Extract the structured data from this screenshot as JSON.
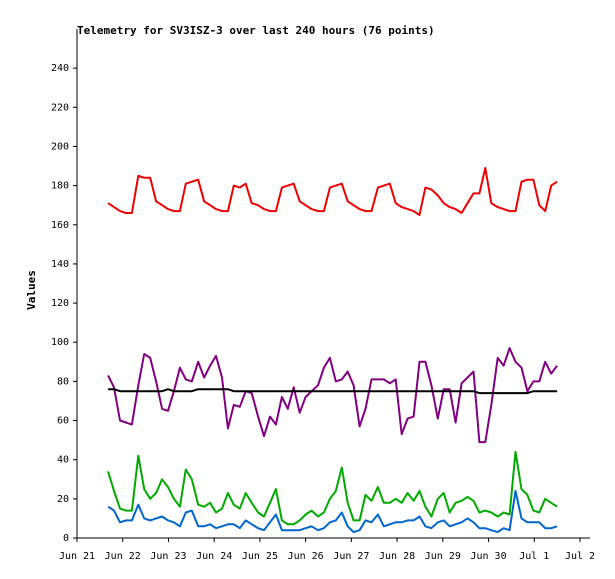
{
  "chart_data": {
    "type": "line",
    "title": "Telemetry for SV3ISZ-3 over last 240 hours (76 points)",
    "y_label": "Values",
    "xlim": [
      0,
      11
    ],
    "xticks": [
      {
        "value": 0,
        "label": "Jun 21"
      },
      {
        "value": 1,
        "label": "Jun 22"
      },
      {
        "value": 2,
        "label": "Jun 23"
      },
      {
        "value": 3,
        "label": "Jun 24"
      },
      {
        "value": 4,
        "label": "Jun 25"
      },
      {
        "value": 5,
        "label": "Jun 26"
      },
      {
        "value": 6,
        "label": "Jun 27"
      },
      {
        "value": 7,
        "label": "Jun 28"
      },
      {
        "value": 8,
        "label": "Jun 29"
      },
      {
        "value": 9,
        "label": "Jun 30"
      },
      {
        "value": 10,
        "label": "Jul 1"
      },
      {
        "value": 11,
        "label": "Jul 2"
      }
    ],
    "ylim": [
      0,
      260
    ],
    "yticks": [
      0,
      20,
      40,
      60,
      80,
      100,
      120,
      140,
      160,
      180,
      200,
      220,
      240
    ],
    "grid": false,
    "x": [
      0.68,
      0.81,
      0.94,
      1.07,
      1.2,
      1.34,
      1.47,
      1.6,
      1.73,
      1.86,
      1.99,
      2.12,
      2.25,
      2.38,
      2.51,
      2.65,
      2.78,
      2.91,
      3.04,
      3.17,
      3.3,
      3.43,
      3.56,
      3.69,
      3.82,
      3.96,
      4.09,
      4.22,
      4.35,
      4.48,
      4.61,
      4.74,
      4.87,
      5.0,
      5.13,
      5.27,
      5.4,
      5.53,
      5.66,
      5.79,
      5.92,
      6.05,
      6.18,
      6.31,
      6.44,
      6.58,
      6.71,
      6.84,
      6.97,
      7.1,
      7.23,
      7.36,
      7.49,
      7.62,
      7.75,
      7.89,
      8.02,
      8.15,
      8.28,
      8.41,
      8.54,
      8.67,
      8.8,
      8.93,
      9.06,
      9.2,
      9.33,
      9.46,
      9.59,
      9.72,
      9.85,
      9.98,
      10.11,
      10.24,
      10.37,
      10.5
    ],
    "series": [
      {
        "color": "#ee0000",
        "values": [
          171,
          169,
          167,
          166,
          166,
          185,
          184,
          184,
          172,
          170,
          168,
          167,
          167,
          181,
          182,
          183,
          172,
          170,
          168,
          167,
          167,
          180,
          179,
          181,
          171,
          170,
          168,
          167,
          167,
          179,
          180,
          181,
          172,
          170,
          168,
          167,
          167,
          179,
          180,
          181,
          172,
          170,
          168,
          167,
          167,
          179,
          180,
          181,
          171,
          169,
          168,
          167,
          165,
          179,
          178,
          175,
          171,
          169,
          168,
          166,
          171,
          176,
          176,
          189,
          171,
          169,
          168,
          167,
          167,
          182,
          183,
          183,
          170,
          167,
          180,
          182
        ]
      },
      {
        "color": "#800080",
        "values": [
          83,
          77,
          60,
          59,
          58,
          78,
          94,
          92,
          80,
          66,
          65,
          75,
          87,
          81,
          80,
          90,
          82,
          88,
          93,
          82,
          56,
          68,
          67,
          75,
          74,
          62,
          52,
          62,
          58,
          72,
          66,
          77,
          64,
          72,
          75,
          78,
          87,
          92,
          80,
          81,
          85,
          78,
          57,
          66,
          81,
          81,
          81,
          79,
          81,
          53,
          61,
          62,
          90,
          90,
          78,
          61,
          76,
          76,
          59,
          79,
          82,
          85,
          49,
          49,
          68,
          92,
          88,
          97,
          90,
          87,
          75,
          80,
          80,
          90,
          84,
          88
        ]
      },
      {
        "color": "#000000",
        "values": [
          76,
          76,
          75,
          75,
          75,
          75,
          75,
          75,
          75,
          75,
          76,
          75,
          75,
          75,
          75,
          76,
          76,
          76,
          76,
          76,
          76,
          75,
          75,
          75,
          75,
          75,
          75,
          75,
          75,
          75,
          75,
          75,
          75,
          75,
          75,
          75,
          75,
          75,
          75,
          75,
          75,
          75,
          75,
          75,
          75,
          75,
          75,
          75,
          75,
          75,
          75,
          75,
          75,
          75,
          75,
          75,
          75,
          75,
          75,
          75,
          75,
          75,
          74,
          74,
          74,
          74,
          74,
          74,
          74,
          74,
          74,
          75,
          75,
          75,
          75,
          75
        ]
      },
      {
        "color": "#00aa00",
        "values": [
          34,
          24,
          15,
          14,
          14,
          42,
          25,
          20,
          23,
          30,
          26,
          20,
          16,
          35,
          30,
          17,
          16,
          18,
          13,
          15,
          23,
          17,
          15,
          23,
          18,
          13,
          11,
          18,
          25,
          9,
          7,
          7,
          9,
          12,
          14,
          11,
          13,
          20,
          24,
          36,
          18,
          9,
          9,
          22,
          19,
          26,
          18,
          18,
          20,
          18,
          23,
          19,
          24,
          16,
          11,
          20,
          23,
          13,
          18,
          19,
          21,
          19,
          13,
          14,
          13,
          11,
          13,
          12,
          44,
          25,
          22,
          14,
          13,
          20,
          18,
          16
        ]
      },
      {
        "color": "#0066cc",
        "values": [
          16,
          14,
          8,
          9,
          9,
          17,
          10,
          9,
          10,
          11,
          9,
          8,
          6,
          13,
          14,
          6,
          6,
          7,
          5,
          6,
          7,
          7,
          5,
          9,
          7,
          5,
          4,
          8,
          12,
          4,
          4,
          4,
          4,
          5,
          6,
          4,
          5,
          8,
          9,
          13,
          6,
          3,
          4,
          9,
          8,
          12,
          6,
          7,
          8,
          8,
          9,
          9,
          11,
          6,
          5,
          8,
          9,
          6,
          7,
          8,
          10,
          8,
          5,
          5,
          4,
          3,
          5,
          4,
          24,
          10,
          8,
          8,
          8,
          5,
          5,
          6
        ]
      }
    ]
  }
}
